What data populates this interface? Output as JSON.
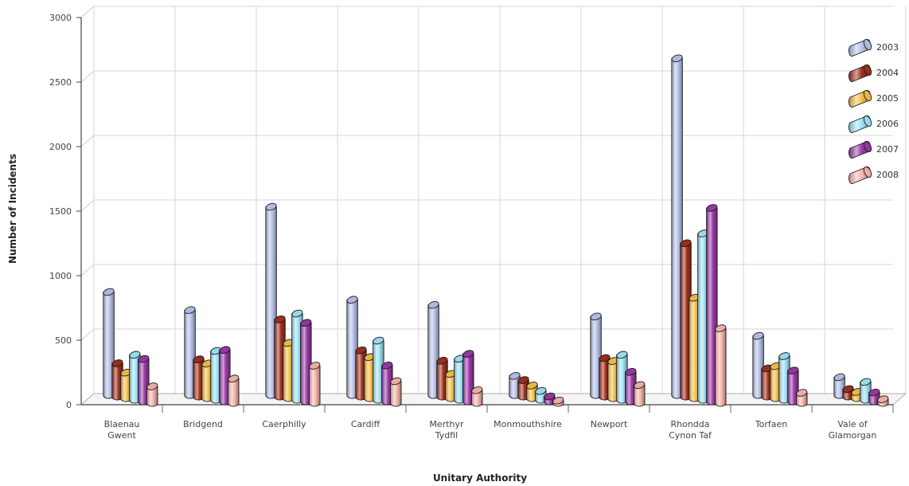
{
  "chart_data": {
    "type": "bar",
    "title": "",
    "xlabel": "Unitary Authority",
    "ylabel": "Number of Incidents",
    "ylim": [
      0,
      3000
    ],
    "yticks": [
      0,
      500,
      1000,
      1500,
      2000,
      2500,
      3000
    ],
    "grid": true,
    "legend_position": "top-right",
    "categories": [
      [
        "Blaenau",
        "Gwent"
      ],
      [
        "Bridgend"
      ],
      [
        "Caerphilly"
      ],
      [
        "Cardiff"
      ],
      [
        "Merthyr",
        "Tydfil"
      ],
      [
        "Monmouthshire"
      ],
      [
        "Newport"
      ],
      [
        "Rhondda",
        "Cynon Taf"
      ],
      [
        "Torfaen"
      ],
      [
        "Vale of",
        "Glamorgan"
      ]
    ],
    "series": [
      {
        "name": "2003",
        "color": "#b8c3ea",
        "values": [
          800,
          660,
          1460,
          740,
          700,
          150,
          610,
          2610,
          460,
          140
        ]
      },
      {
        "name": "2004",
        "color": "#a0301e",
        "values": [
          260,
          290,
          600,
          360,
          280,
          130,
          300,
          1190,
          220,
          60
        ]
      },
      {
        "name": "2005",
        "color": "#f5c04a",
        "values": [
          200,
          270,
          430,
          320,
          190,
          100,
          290,
          780,
          250,
          50
        ]
      },
      {
        "name": "2006",
        "color": "#9fe4f6",
        "values": [
          350,
          380,
          670,
          460,
          320,
          70,
          350,
          1290,
          340,
          140
        ]
      },
      {
        "name": "2007",
        "color": "#9b3aa8",
        "values": [
          330,
          400,
          610,
          280,
          370,
          40,
          230,
          1500,
          240,
          70
        ]
      },
      {
        "name": "2008",
        "color": "#f6b6ac",
        "values": [
          130,
          190,
          290,
          170,
          100,
          20,
          140,
          580,
          80,
          30
        ]
      }
    ]
  }
}
